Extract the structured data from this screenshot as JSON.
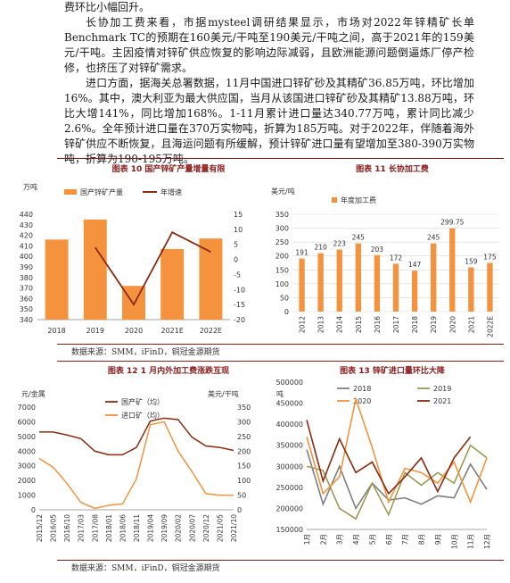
{
  "paragraphs": [
    "费环比小幅回升。",
    "长协加工费来看，市据mysteel调研结果显示，市场对2022年锌精矿长单Benchmark TC的预期在160美元/干吨至190美元/干吨之间，高于2021年的159美元/干吨。主因疫情对锌矿供应恢复的影响边际减弱，且欧洲能源问题倒逼炼厂停产检修，也挤压了对锌矿需求。",
    "进口方面，据海关总署数据，11月中国进口锌矿砂及其精矿36.85万吨，环比增加16%。其中，澳大利亚为最大供应国，当月从该国进口锌矿砂及其精矿13.88万吨，环比大增141%，同比增加168%。1-11月累计进口量达340.77万吨，累计同比减少2.6%。全年预计进口量在370万实物吨，折算为185万吨。对于2022年，伴随着海外锌矿供应不断恢复，且海运问题有所缓解，预计锌矿进口量有望增加至380-390万实物吨，折算为190-195万吨。"
  ],
  "captions": {
    "fig10": "图表 10  国产锌矿产量增量有限",
    "fig11": "图表 11  长协加工费",
    "fig12": "图表 12  1 月内外加工费涨跌互现",
    "fig13": "图表 13  锌矿进口量环比大降"
  },
  "sources": {
    "top": "数据来源：SMM，iFinD，铜冠金源期货",
    "bottom": "数据来源：SMM，iFinD，铜冠金源期货"
  },
  "colors": {
    "accent": "#8b1a1a",
    "orange": "#f5923e",
    "brown": "#8b2a0e",
    "gray": "#7f7f7f",
    "olive": "#9a9a55"
  },
  "chart_data": [
    {
      "type": "bar",
      "categories": [
        "2018",
        "2019",
        "2020",
        "2021E",
        "2022E"
      ],
      "series": [
        {
          "name": "国产锌矿产量",
          "axis": "left",
          "values": [
            416,
            435,
            372,
            407,
            417
          ]
        },
        {
          "name": "年增速",
          "axis": "right",
          "type": "line",
          "values": [
            null,
            4,
            -15,
            9,
            2.5
          ]
        }
      ],
      "ylabel": "万吨",
      "ylim": [
        340,
        440
      ],
      "yticks": [
        340,
        350,
        360,
        370,
        380,
        390,
        400,
        410,
        420,
        430,
        440
      ],
      "y2lim": [
        -20,
        15
      ],
      "y2ticks": [
        -20,
        -15,
        -10,
        -5,
        0,
        5,
        10,
        15
      ],
      "legend": "top"
    },
    {
      "type": "bar",
      "categories": [
        "2012",
        "2013",
        "2014",
        "2015",
        "2016",
        "2017",
        "2018",
        "2019",
        "2020",
        "2021",
        "2022E"
      ],
      "series": [
        {
          "name": "年度加工费",
          "values": [
            191,
            210,
            223,
            245,
            203,
            172,
            147,
            245,
            299.75,
            159,
            175
          ]
        }
      ],
      "labels": [
        "191",
        "210",
        "223",
        "245",
        "203",
        "172",
        "147",
        "245",
        "299.75",
        "159",
        "175"
      ],
      "ylabel": "美元/吨",
      "ylim": [
        0,
        350
      ],
      "yticks": [
        0,
        50,
        100,
        150,
        200,
        250,
        300,
        350
      ],
      "legend": "top-left",
      "grid": true
    },
    {
      "type": "line",
      "x": [
        "2015/12",
        "2016/05",
        "2016/10",
        "2017/03",
        "2017/08",
        "2018/01",
        "2018/06",
        "2018/11",
        "2019/04",
        "2019/09",
        "2020/02",
        "2020/07",
        "2020/12",
        "2021/05",
        "2021/10"
      ],
      "series": [
        {
          "name": "国产矿（均）",
          "axis": "left",
          "values": [
            5300,
            5300,
            5100,
            4850,
            4000,
            3750,
            3750,
            4250,
            6050,
            6250,
            6150,
            4950,
            4350,
            4250,
            4050
          ]
        },
        {
          "name": "进口矿（均）",
          "axis": "right",
          "values": [
            175,
            145,
            90,
            25,
            5,
            15,
            20,
            105,
            290,
            300,
            200,
            130,
            55,
            50,
            50
          ]
        }
      ],
      "ylabel": "元/金属",
      "y2label": "美元/干吨",
      "ylim": [
        0,
        7000
      ],
      "yticks": [
        0,
        1000,
        2000,
        3000,
        4000,
        5000,
        6000,
        7000
      ],
      "y2lim": [
        0,
        350
      ],
      "y2ticks": [
        0,
        50,
        100,
        150,
        200,
        250,
        300,
        350
      ],
      "legend": "top"
    },
    {
      "type": "line",
      "categories": [
        "1月",
        "2月",
        "3月",
        "4月",
        "5月",
        "6月",
        "7月",
        "8月",
        "9月",
        "10月",
        "11月",
        "12月"
      ],
      "series": [
        {
          "name": "2018",
          "values": [
            340000,
            210000,
            300000,
            200000,
            260000,
            220000,
            225000,
            210000,
            230000,
            225000,
            305000,
            245000
          ]
        },
        {
          "name": "2019",
          "values": [
            300000,
            290000,
            200000,
            175000,
            260000,
            185000,
            285000,
            255000,
            285000,
            260000,
            350000,
            320000
          ]
        },
        {
          "name": "2020",
          "values": [
            370000,
            235000,
            275000,
            460000,
            345000,
            215000,
            295000,
            285000,
            260000,
            310000,
            215000,
            320000
          ]
        },
        {
          "name": "2021",
          "values": [
            410000,
            265000,
            365000,
            285000,
            310000,
            235000,
            275000,
            320000,
            240000,
            320000,
            370000,
            null
          ]
        }
      ],
      "ylabel": "吨",
      "ylim": [
        150000,
        500000
      ],
      "yticks": [
        150000,
        200000,
        250000,
        300000,
        350000,
        400000,
        450000,
        500000
      ],
      "legend": "top"
    }
  ]
}
